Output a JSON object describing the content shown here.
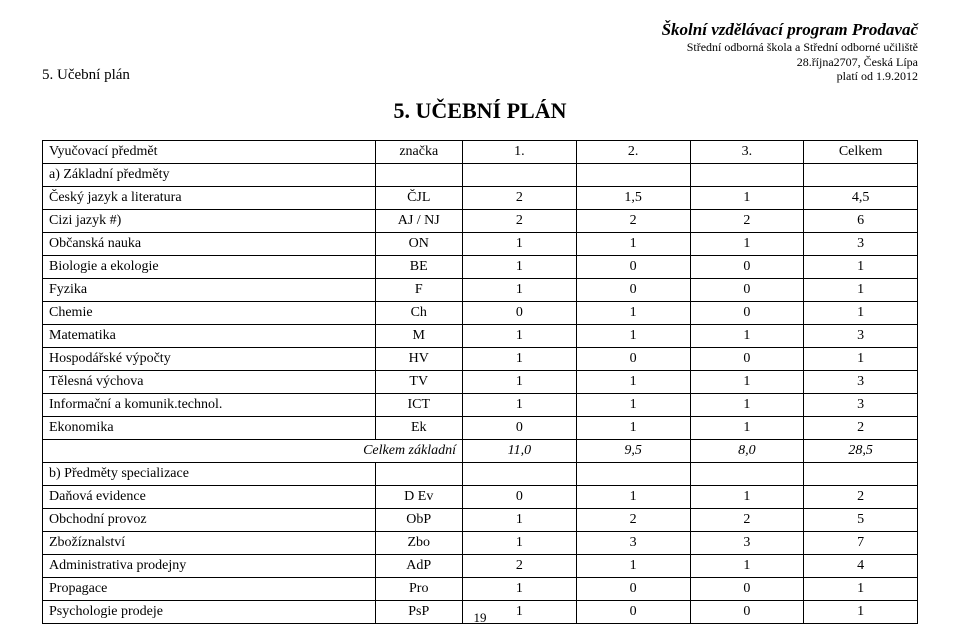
{
  "header": {
    "left": "5. Učební plán",
    "right_title": "Školní vzdělávací program Prodavač",
    "right_line2": "Střední odborná škola a Střední odborné učiliště",
    "right_line3": "28.října2707, Česká Lípa",
    "right_line4": "platí od 1.9.2012"
  },
  "title": "5. UČEBNÍ PLÁN",
  "table_header": {
    "c1": "Vyučovací předmět",
    "c2": "značka",
    "c3": "1.",
    "c4": "2.",
    "c5": "3.",
    "c6": "Celkem"
  },
  "section_a": "a) Základní předměty",
  "rows_a": [
    {
      "name": "Český jazyk a literatura",
      "code": "ČJL",
      "v1": "2",
      "v2": "1,5",
      "v3": "1",
      "sum": "4,5"
    },
    {
      "name": "Cizi jazyk #)",
      "code": "AJ / NJ",
      "v1": "2",
      "v2": "2",
      "v3": "2",
      "sum": "6"
    },
    {
      "name": "Občanská nauka",
      "code": "ON",
      "v1": "1",
      "v2": "1",
      "v3": "1",
      "sum": "3"
    },
    {
      "name": "Biologie a ekologie",
      "code": "BE",
      "v1": "1",
      "v2": "0",
      "v3": "0",
      "sum": "1"
    },
    {
      "name": "Fyzika",
      "code": "F",
      "v1": "1",
      "v2": "0",
      "v3": "0",
      "sum": "1"
    },
    {
      "name": "Chemie",
      "code": "Ch",
      "v1": "0",
      "v2": "1",
      "v3": "0",
      "sum": "1"
    },
    {
      "name": "Matematika",
      "code": "M",
      "v1": "1",
      "v2": "1",
      "v3": "1",
      "sum": "3"
    },
    {
      "name": "Hospodářské výpočty",
      "code": "HV",
      "v1": "1",
      "v2": "0",
      "v3": "0",
      "sum": "1"
    },
    {
      "name": "Tělesná výchova",
      "code": "TV",
      "v1": "1",
      "v2": "1",
      "v3": "1",
      "sum": "3"
    },
    {
      "name": "Informační a komunik.technol.",
      "code": "ICT",
      "v1": "1",
      "v2": "1",
      "v3": "1",
      "sum": "3"
    },
    {
      "name": "Ekonomika",
      "code": "Ek",
      "v1": "0",
      "v2": "1",
      "v3": "1",
      "sum": "2"
    }
  ],
  "summary_a": {
    "label": "Celkem základní",
    "v1": "11,0",
    "v2": "9,5",
    "v3": "8,0",
    "sum": "28,5"
  },
  "section_b": "b) Předměty specializace",
  "rows_b": [
    {
      "name": "Daňová evidence",
      "code": "D Ev",
      "v1": "0",
      "v2": "1",
      "v3": "1",
      "sum": "2"
    },
    {
      "name": "Obchodní provoz",
      "code": "ObP",
      "v1": "1",
      "v2": "2",
      "v3": "2",
      "sum": "5"
    },
    {
      "name": "Zbožíznalství",
      "code": "Zbo",
      "v1": "1",
      "v2": "3",
      "v3": "3",
      "sum": "7"
    },
    {
      "name": "Administrativa prodejny",
      "code": "AdP",
      "v1": "2",
      "v2": "1",
      "v3": "1",
      "sum": "4"
    },
    {
      "name": "Propagace",
      "code": "Pro",
      "v1": "1",
      "v2": "0",
      "v3": "0",
      "sum": "1"
    },
    {
      "name": "Psychologie prodeje",
      "code": "PsP",
      "v1": "1",
      "v2": "0",
      "v3": "0",
      "sum": "1"
    }
  ],
  "page_number": "19"
}
